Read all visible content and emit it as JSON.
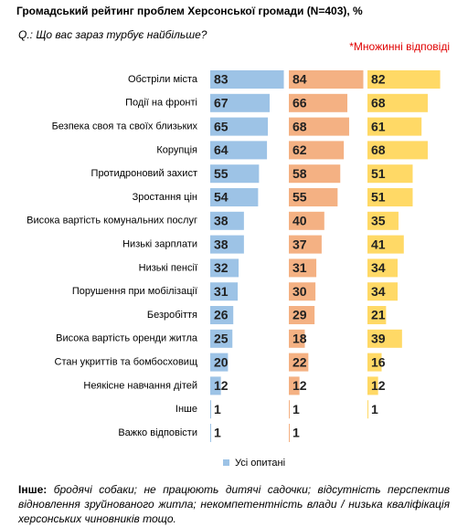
{
  "chart_data": {
    "type": "barh",
    "title": "Громадський рейтинг проблем Херсонської громади (N=403), %",
    "subtitle": "Q.: Що вас зараз турбує найбільше?",
    "annotation": "*Множинні відповіді",
    "categories": [
      "Обстріли міста",
      "Події на фронті",
      "Безпека своя та своїх близьких",
      "Корупція",
      "Протидроновий захист",
      "Зростання цін",
      "Висока вартість комунальних послуг",
      "Низькі зарплати",
      "Низькі пенсії",
      "Порушення при мобілізації",
      "Безробіття",
      "Висока вартість оренди житла",
      "Стан укриттів та бомбосховищ",
      "Неякісне навчання дітей",
      "Інше",
      "Важко відповісти"
    ],
    "series": [
      {
        "name": "Усі опитані",
        "color": "#9dc3e6",
        "values": [
          83,
          67,
          65,
          64,
          55,
          54,
          38,
          38,
          32,
          31,
          26,
          25,
          20,
          12,
          1,
          1
        ]
      },
      {
        "color": "#f4b183",
        "values": [
          84,
          66,
          68,
          62,
          58,
          55,
          40,
          37,
          31,
          30,
          29,
          18,
          22,
          12,
          1,
          1
        ]
      },
      {
        "color": "#ffd966",
        "values": [
          82,
          68,
          61,
          68,
          51,
          51,
          35,
          41,
          34,
          34,
          21,
          39,
          16,
          12,
          1,
          null
        ]
      }
    ],
    "legend": "bottom"
  },
  "footnote": {
    "label": "Інше:",
    "text": "бродячі собаки; не працюють дитячі садочки; відсутність перспектив відновлення зруйнованого житла; некомпетентність влади / низька кваліфікація херсонських чиновників тощо."
  }
}
